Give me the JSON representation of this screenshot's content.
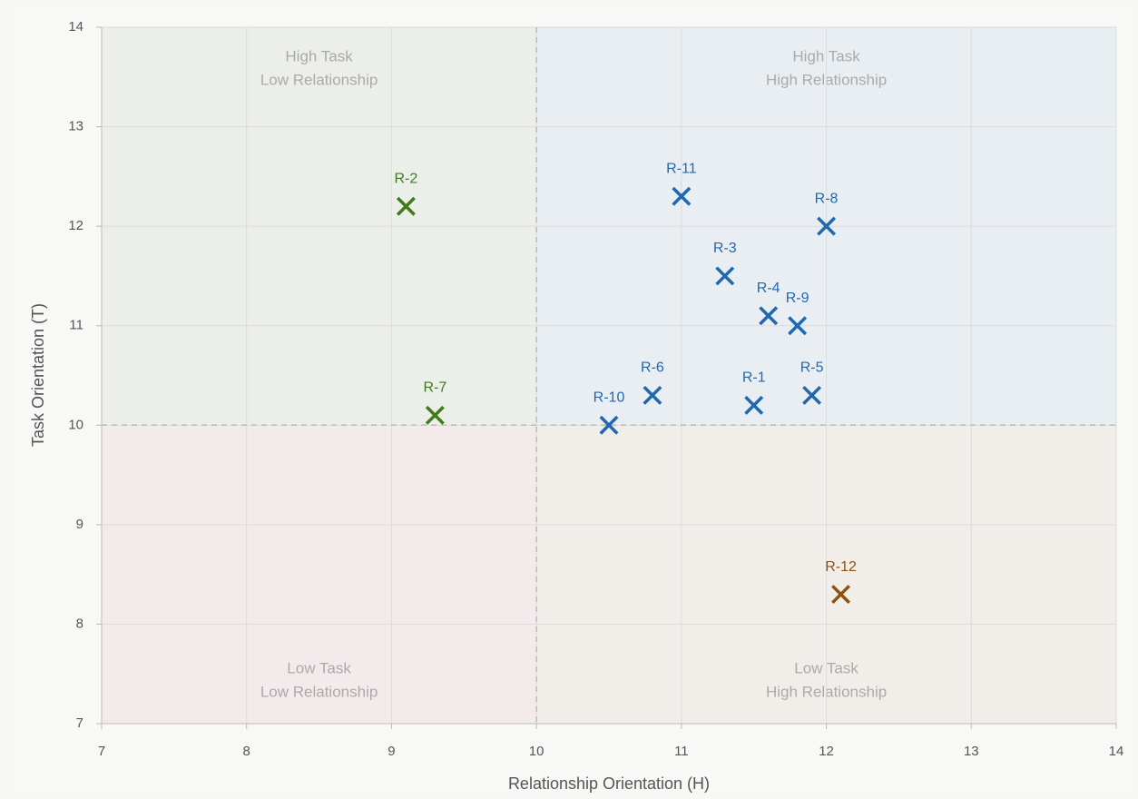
{
  "chart_data": {
    "type": "scatter",
    "xlabel": "Relationship Orientation (H)",
    "ylabel": "Task Orientation (T)",
    "xlim": [
      7,
      14
    ],
    "ylim": [
      7,
      14
    ],
    "xticks": [
      7,
      8,
      9,
      10,
      11,
      12,
      13,
      14
    ],
    "yticks": [
      7,
      8,
      9,
      10,
      11,
      12,
      13,
      14
    ],
    "grid": true,
    "dividers": {
      "x": 10,
      "y": 10
    },
    "quadrants": [
      {
        "position": "top-left",
        "fill": "#eceee9",
        "lines": [
          "High Task",
          "Low Relationship"
        ]
      },
      {
        "position": "top-right",
        "fill": "#e9eef3",
        "lines": [
          "High Task",
          "High Relationship"
        ]
      },
      {
        "position": "bottom-left",
        "fill": "#f3ebeb",
        "lines": [
          "Low Task",
          "Low Relationship"
        ]
      },
      {
        "position": "bottom-right",
        "fill": "#f1eeea",
        "lines": [
          "Low Task",
          "High Relationship"
        ]
      }
    ],
    "points": [
      {
        "label": "R-1",
        "x": 11.5,
        "y": 10.2,
        "color": "#1f68b0"
      },
      {
        "label": "R-2",
        "x": 9.1,
        "y": 12.2,
        "color": "#3f7a1c"
      },
      {
        "label": "R-3",
        "x": 11.3,
        "y": 11.5,
        "color": "#1f68b0"
      },
      {
        "label": "R-4",
        "x": 11.6,
        "y": 11.1,
        "color": "#1f68b0"
      },
      {
        "label": "R-5",
        "x": 11.9,
        "y": 10.3,
        "color": "#1f68b0"
      },
      {
        "label": "R-6",
        "x": 10.8,
        "y": 10.3,
        "color": "#1f68b0"
      },
      {
        "label": "R-7",
        "x": 9.3,
        "y": 10.1,
        "color": "#3f7a1c"
      },
      {
        "label": "R-8",
        "x": 12.0,
        "y": 12.0,
        "color": "#1f68b0"
      },
      {
        "label": "R-9",
        "x": 11.8,
        "y": 11.0,
        "color": "#1f68b0"
      },
      {
        "label": "R-10",
        "x": 10.5,
        "y": 10.0,
        "color": "#1f68b0"
      },
      {
        "label": "R-11",
        "x": 11.0,
        "y": 12.3,
        "color": "#1f68b0"
      },
      {
        "label": "R-12",
        "x": 12.1,
        "y": 8.3,
        "color": "#8a5214"
      }
    ]
  }
}
